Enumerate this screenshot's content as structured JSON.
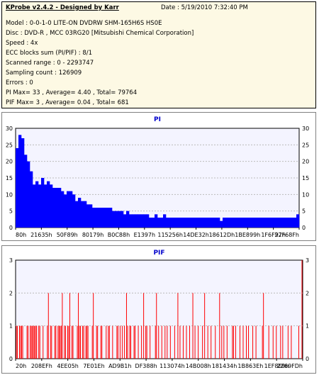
{
  "header": {
    "title": "KProbe v2.4.2 - Designed by Karr",
    "date": "Date : 5/19/2010 7:32:40 PM"
  },
  "info_lines": [
    "Model : 0-0-1-0 LITE-ON DVDRW SHM-165H6S HS0E",
    "Disc : DVD-R , MCC 03RG20   [Mitsubishi Chemical Corporation]",
    "Speed : 4x",
    "ECC blocks sum (PI/PIF) : 8/1",
    "Scanned range : 0 - 2293747",
    "Sampling count : 126909",
    "Errors : 0",
    "PI Max= 33 , Average= 4.40 , Total= 79764",
    "PIF Max= 3 , Average= 0.04 , Total= 681"
  ],
  "colors": {
    "pi_fill": "#0000ff",
    "pif_bar": "#ff0000",
    "plot_bg": "#f4f4ff",
    "title_color": "#0000cc"
  },
  "chart_data": [
    {
      "type": "area",
      "title": "PI",
      "ylim": [
        0,
        30
      ],
      "yticks": [
        "0",
        "5",
        "10",
        "15",
        "20",
        "25",
        "30"
      ],
      "xticks": [
        "80h",
        "21635h",
        "50F89h",
        "80179h",
        "B0C88h",
        "E1397h",
        "115256h",
        "14DE32h",
        "18612Dh",
        "1BE899h",
        "1F6F97h",
        "22F68Fh"
      ],
      "series": [
        {
          "values": [
            24,
            28,
            27,
            22,
            20,
            17,
            13,
            14,
            13,
            15,
            13,
            14,
            13,
            12,
            12,
            12,
            11,
            10,
            11,
            11,
            10,
            8,
            9,
            8,
            8,
            7,
            7,
            6,
            6,
            6,
            6,
            6,
            6,
            6,
            5,
            5,
            5,
            5,
            4,
            5,
            4,
            4,
            4,
            4,
            4,
            4,
            4,
            3,
            3,
            4,
            3,
            3,
            4,
            3,
            3,
            3,
            3,
            3,
            3,
            3,
            3,
            3,
            3,
            3,
            3,
            3,
            3,
            3,
            3,
            3,
            3,
            3,
            2,
            3,
            3,
            3,
            3,
            3,
            3,
            3,
            3,
            3,
            3,
            3,
            3,
            3,
            3,
            3,
            3,
            3,
            3,
            3,
            3,
            3,
            3,
            3,
            3,
            3,
            3,
            4
          ]
        }
      ]
    },
    {
      "type": "bar",
      "title": "PIF",
      "ylim": [
        0,
        3
      ],
      "yticks": [
        "0",
        "1",
        "2",
        "3"
      ],
      "xticks": [
        "20h",
        "208EFh",
        "4EE05h",
        "7E01Eh",
        "AD9B1h",
        "DF388h",
        "113074h",
        "14B008h",
        "181434h",
        "1B863Eh",
        "1EF809h",
        "2269FDh"
      ],
      "series": [
        {
          "values": [
            1,
            1,
            0,
            1,
            1,
            1,
            1,
            0,
            0,
            0,
            1,
            1,
            0,
            1,
            1,
            1,
            1,
            1,
            1,
            1,
            0,
            1,
            1,
            0,
            0,
            1,
            0,
            0,
            0,
            1,
            2,
            0,
            1,
            1,
            0,
            0,
            1,
            1,
            0,
            1,
            1,
            1,
            1,
            2,
            0,
            1,
            1,
            0,
            1,
            1,
            2,
            0,
            1,
            1,
            0,
            0,
            0,
            1,
            2,
            1,
            1,
            0,
            1,
            1,
            0,
            1,
            1,
            1,
            0,
            0,
            0,
            1,
            2,
            0,
            0,
            1,
            1,
            0,
            0,
            1,
            1,
            0,
            0,
            0,
            1,
            0,
            1,
            1,
            0,
            0,
            1,
            0,
            0,
            0,
            1,
            1,
            0,
            1,
            0,
            1,
            0,
            1,
            0,
            2,
            1,
            0,
            1,
            1,
            0,
            0,
            1,
            1,
            0,
            0,
            1,
            0,
            0,
            1,
            0,
            2,
            0,
            1,
            1,
            0,
            0,
            1,
            0,
            0,
            0,
            0,
            1,
            2,
            0,
            1,
            0,
            0,
            1,
            0,
            0,
            1,
            0,
            1,
            0,
            0,
            1,
            0,
            0,
            0,
            1,
            0,
            0,
            2,
            0,
            1,
            0,
            0,
            1,
            0,
            0,
            1,
            0,
            0,
            1,
            0,
            0,
            2,
            0,
            1,
            0,
            0,
            1,
            0,
            0,
            0,
            1,
            0,
            2,
            0,
            0,
            1,
            0,
            0,
            1,
            0,
            0,
            0,
            1,
            0,
            0,
            0,
            2,
            0,
            1,
            0,
            1,
            0,
            0,
            1,
            0,
            0,
            0,
            0,
            1,
            1,
            0,
            1,
            0,
            0,
            0,
            1,
            0,
            0,
            1,
            0,
            0,
            1,
            0,
            1,
            0,
            0,
            0,
            1,
            0,
            0,
            1,
            0,
            0,
            0,
            0,
            0,
            1,
            2,
            0,
            0,
            0,
            0,
            1,
            0,
            0,
            0,
            1,
            0,
            0,
            1,
            0,
            0,
            0,
            1,
            0,
            1,
            0,
            0,
            0,
            0,
            1,
            0,
            0,
            1,
            0,
            0,
            0,
            0,
            0,
            0,
            1,
            0,
            0,
            3
          ]
        }
      ]
    }
  ]
}
